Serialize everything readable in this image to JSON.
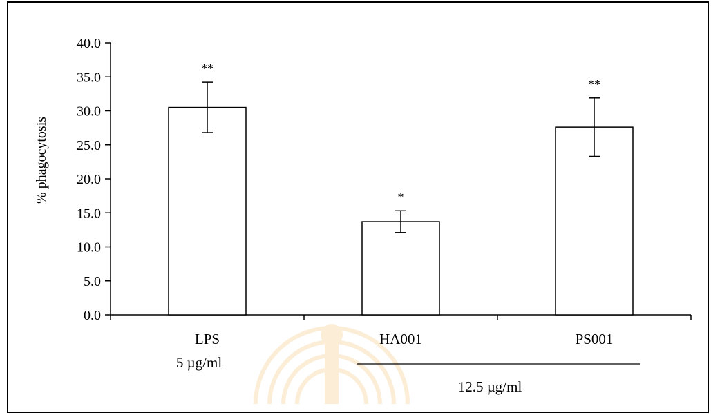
{
  "chart_data": {
    "type": "bar",
    "categories": [
      "LPS",
      "HA001",
      "PS001"
    ],
    "values": [
      30.5,
      13.7,
      27.6
    ],
    "errors": [
      3.7,
      1.6,
      4.3
    ],
    "significance": [
      "**",
      "*",
      "**"
    ],
    "ylabel": "% phagocytosis",
    "xlabel": "",
    "ylim": [
      0,
      40
    ],
    "yticks": [
      "0.0",
      "5.0",
      "10.0",
      "15.0",
      "20.0",
      "25.0",
      "30.0",
      "35.0",
      "40.0"
    ],
    "grid": false,
    "concentration_labels": {
      "lps": "5 µg/ml",
      "group": "12.5 µg/ml"
    },
    "colors": {
      "bar_fill": "#ffffff",
      "bar_stroke": "#000000",
      "watermark": "#f0a020"
    }
  }
}
